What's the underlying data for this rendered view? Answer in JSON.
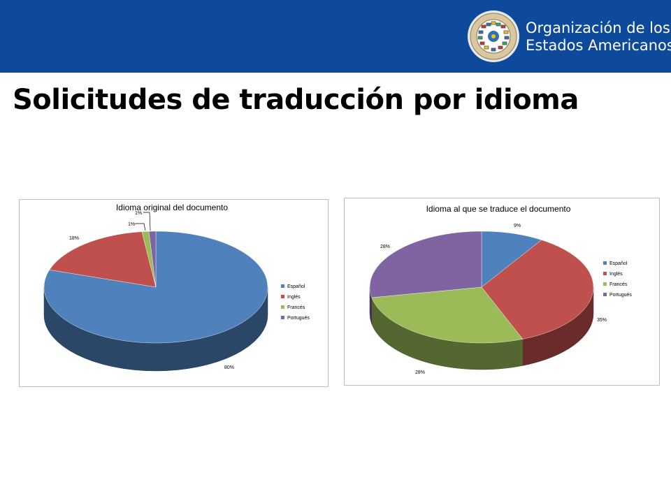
{
  "header": {
    "org_name_line1": "Organización de los",
    "org_name_line2": "Estados Americanos",
    "brand_color": "#0d4a9b"
  },
  "page": {
    "title": "Solicitudes de traducción por idioma"
  },
  "chart_data": [
    {
      "type": "pie",
      "style": "3d-pie",
      "title": "Idioma original del documento",
      "categories": [
        "Español",
        "Inglés",
        "Francés",
        "Portugués"
      ],
      "values": [
        80,
        18,
        1,
        1
      ],
      "labels": [
        "80%",
        "18%",
        "1%",
        "1%"
      ],
      "colors": [
        "#4f81bd",
        "#c0504d",
        "#9bbb59",
        "#8064a2"
      ],
      "legend": "right"
    },
    {
      "type": "pie",
      "style": "3d-pie",
      "title": "Idioma al que se traduce el documento",
      "categories": [
        "Español",
        "Inglés",
        "Francés",
        "Portugués"
      ],
      "values": [
        9,
        35,
        28,
        28
      ],
      "labels": [
        "9%",
        "35%",
        "28%",
        "28%"
      ],
      "colors": [
        "#4f81bd",
        "#c0504d",
        "#9bbb59",
        "#8064a2"
      ],
      "legend": "right"
    }
  ]
}
